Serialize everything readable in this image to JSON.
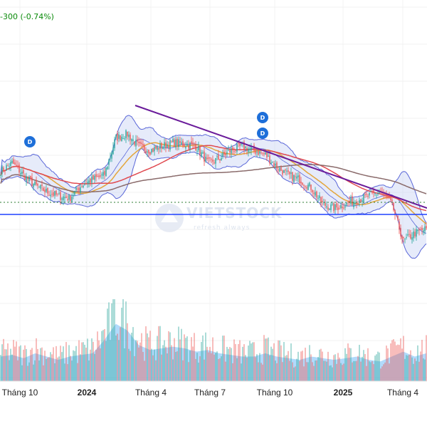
{
  "header": {
    "change_readout": "-300 (-0.74%)"
  },
  "watermark": {
    "brand": "VIETSTOCK",
    "tagline": "refresh always"
  },
  "colors": {
    "up": "#26a69a",
    "down": "#ef5350",
    "ma_short": "#e3a63c",
    "ma_mid": "#e04a50",
    "ma_long": "#8a6b6b",
    "bollinger_band": "#5a67d8",
    "bollinger_fill": "#c7d2f5",
    "trendline": "#6a1b9a",
    "support_line": "#1e40ff",
    "volume_area": "#90caf9",
    "dividend_badge": "#1e6fd9",
    "readout": "#0a8a0a"
  },
  "chart_data": {
    "type": "candlestick",
    "title": "",
    "x_tick_labels": [
      "Tháng 10",
      "2024",
      "Tháng 4",
      "Tháng 7",
      "Tháng 10",
      "2025",
      "Tháng 4"
    ],
    "x_tick_bold": [
      false,
      true,
      false,
      false,
      false,
      true,
      false
    ],
    "markers": [
      {
        "label": "D",
        "near_tick": "Tháng 10",
        "offset": "before"
      },
      {
        "label": "D",
        "near_tick": "Tháng 10",
        "offset": "upper"
      },
      {
        "label": "D",
        "near_tick": "Tháng 10",
        "offset": "lower"
      }
    ],
    "price_trend": [
      0.62,
      0.66,
      0.6,
      0.55,
      0.52,
      0.5,
      0.49,
      0.55,
      0.58,
      0.6,
      0.78,
      0.8,
      0.74,
      0.72,
      0.74,
      0.76,
      0.75,
      0.74,
      0.66,
      0.68,
      0.72,
      0.74,
      0.72,
      0.7,
      0.64,
      0.6,
      0.58,
      0.54,
      0.46,
      0.44,
      0.46,
      0.48,
      0.5,
      0.52,
      0.46,
      0.28,
      0.32,
      0.34
    ],
    "price_range": [
      0,
      1
    ],
    "volume_trend": [
      0.3,
      0.32,
      0.28,
      0.34,
      0.3,
      0.26,
      0.3,
      0.32,
      0.34,
      0.5,
      0.7,
      0.62,
      0.44,
      0.38,
      0.4,
      0.42,
      0.4,
      0.36,
      0.38,
      0.34,
      0.32,
      0.3,
      0.3,
      0.34,
      0.3,
      0.28,
      0.26,
      0.3,
      0.28,
      0.26,
      0.28,
      0.3,
      0.26,
      0.24,
      0.3,
      0.36,
      0.3,
      0.34
    ],
    "volume_range": [
      0,
      1
    ],
    "grid": true,
    "legend": "none"
  }
}
